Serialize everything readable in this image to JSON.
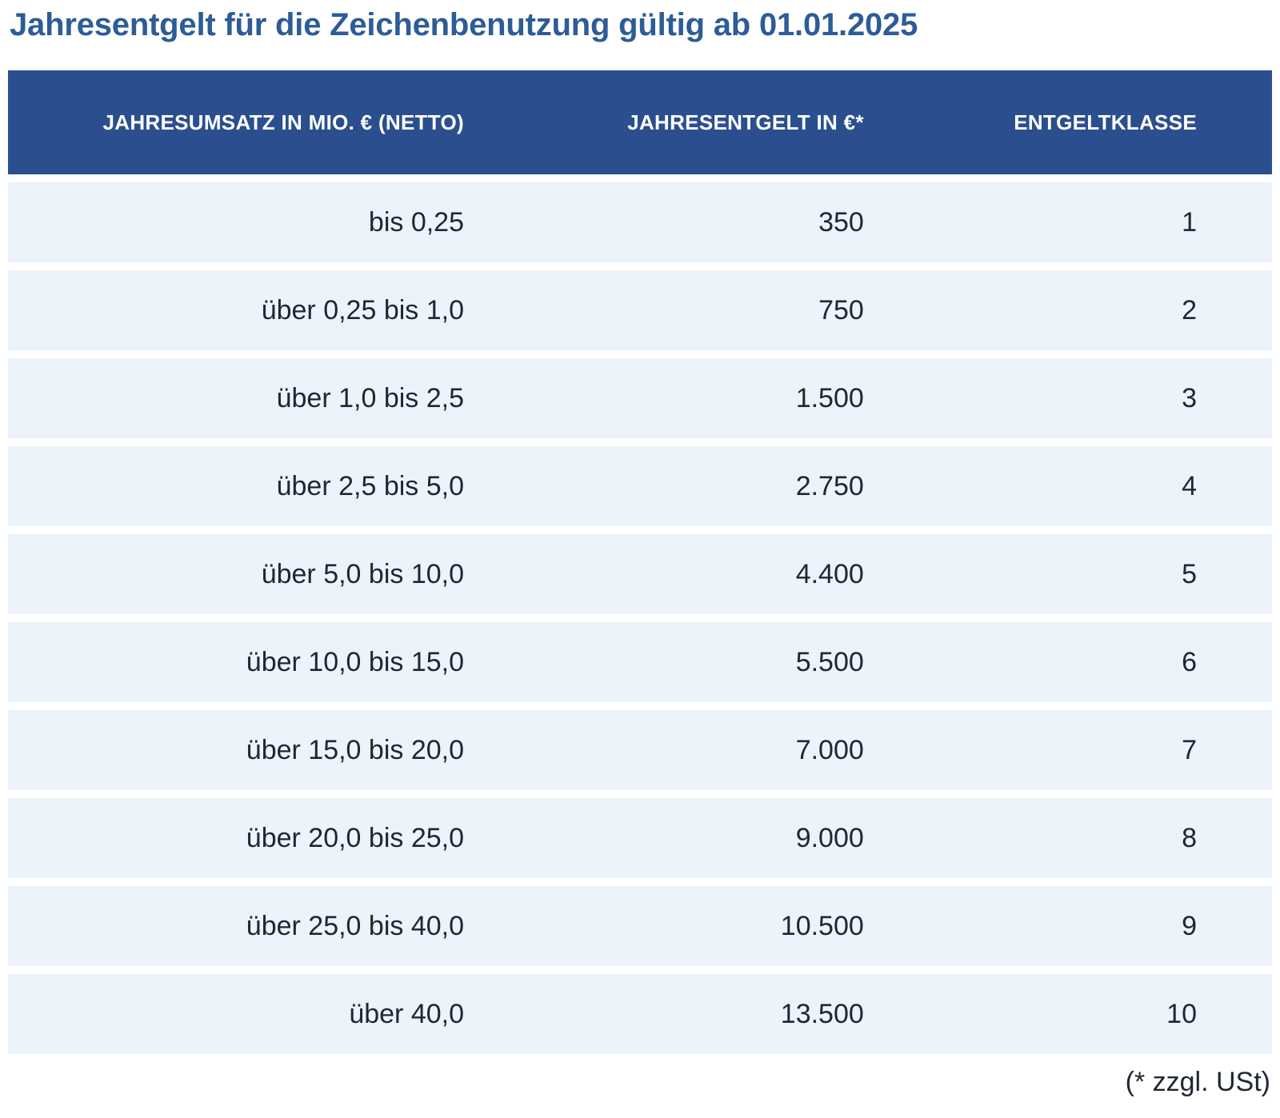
{
  "page": {
    "title": "Jahresentgelt für die Zeichenbenutzung gültig ab 01.01.2025",
    "footnote": "(* zzgl. USt)"
  },
  "table": {
    "columns": [
      "JAHRESUMSATZ IN MIO. € (NETTO)",
      "JAHRESENTGELT IN €*",
      "ENTGELTKLASSE"
    ],
    "rows": [
      {
        "umsatz": "bis 0,25",
        "entgelt": "350",
        "klasse": "1"
      },
      {
        "umsatz": "über 0,25 bis 1,0",
        "entgelt": "750",
        "klasse": "2"
      },
      {
        "umsatz": "über 1,0 bis 2,5",
        "entgelt": "1.500",
        "klasse": "3"
      },
      {
        "umsatz": "über 2,5 bis 5,0",
        "entgelt": "2.750",
        "klasse": "4"
      },
      {
        "umsatz": "über 5,0 bis 10,0",
        "entgelt": "4.400",
        "klasse": "5"
      },
      {
        "umsatz": "über 10,0 bis 15,0",
        "entgelt": "5.500",
        "klasse": "6"
      },
      {
        "umsatz": "über 15,0 bis 20,0",
        "entgelt": "7.000",
        "klasse": "7"
      },
      {
        "umsatz": "über 20,0 bis 25,0",
        "entgelt": "9.000",
        "klasse": "8"
      },
      {
        "umsatz": "über 25,0 bis 40,0",
        "entgelt": "10.500",
        "klasse": "9"
      },
      {
        "umsatz": "über 40,0",
        "entgelt": "13.500",
        "klasse": "10"
      }
    ]
  },
  "colors": {
    "header_background": "#2b4f8e",
    "header_text": "#ffffff",
    "row_background": "#edf3fb",
    "row_gap": "#ffffff",
    "title_text": "#2d5c96",
    "body_text": "#202733"
  }
}
